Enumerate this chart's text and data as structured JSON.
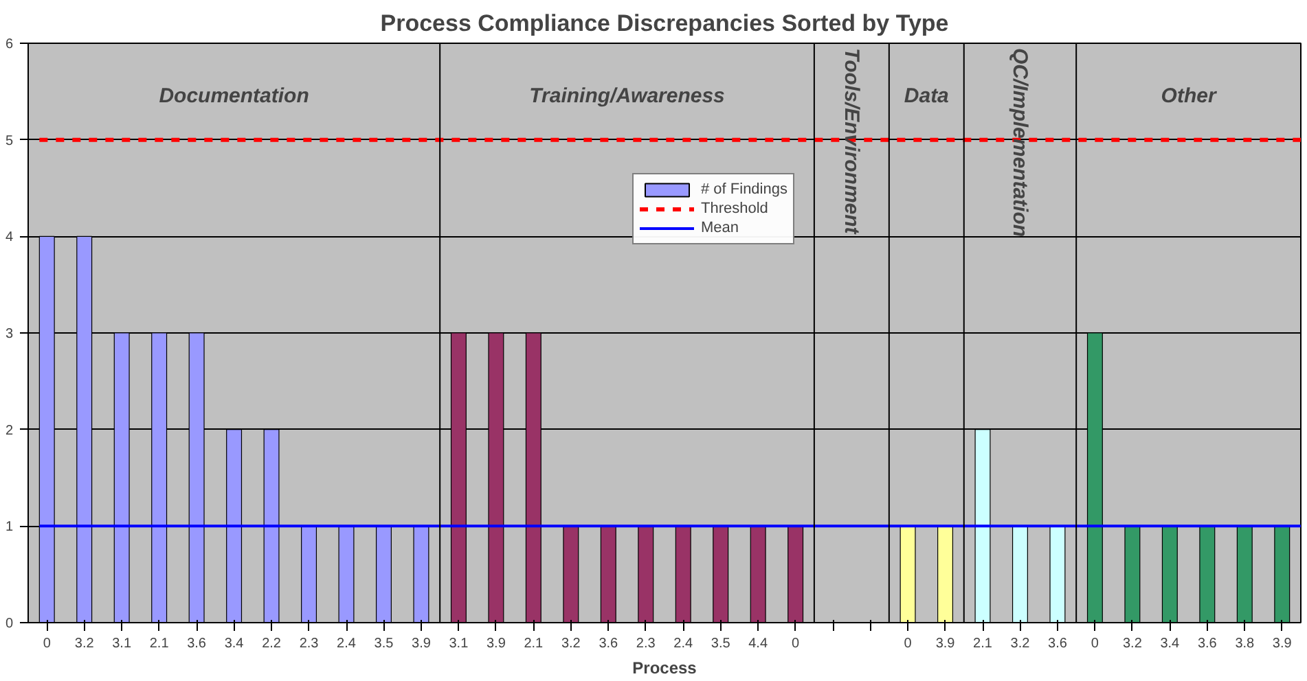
{
  "chart_data": {
    "type": "bar",
    "title": "Process Compliance Discrepancies Sorted by Type",
    "xlabel": "Process",
    "categories": [
      "0",
      "3.2",
      "3.1",
      "2.1",
      "3.6",
      "3.4",
      "2.2",
      "2.3",
      "2.4",
      "3.5",
      "3.9",
      "3.1",
      "3.9",
      "2.1",
      "3.2",
      "3.6",
      "2.3",
      "2.4",
      "3.5",
      "4.4",
      "0",
      null,
      null,
      "0",
      "3.9",
      "2.1",
      "3.2",
      "3.6",
      "0",
      "3.2",
      "3.4",
      "3.6",
      "3.8",
      "3.9"
    ],
    "series": [
      {
        "name": "# of Findings",
        "color": "#9999ff",
        "colors": [
          "#9999ff",
          "#9999ff",
          "#9999ff",
          "#9999ff",
          "#9999ff",
          "#9999ff",
          "#9999ff",
          "#9999ff",
          "#9999ff",
          "#9999ff",
          "#9999ff",
          "#993366",
          "#993366",
          "#993366",
          "#993366",
          "#993366",
          "#993366",
          "#993366",
          "#993366",
          "#993366",
          "#993366",
          "#c0c0c0",
          "#c0c0c0",
          "#ffff99",
          "#ffff99",
          "#ccffff",
          "#ccffff",
          "#ccffff",
          "#339966",
          "#339966",
          "#339966",
          "#339966",
          "#339966",
          "#339966"
        ],
        "values": [
          4,
          4,
          3,
          3,
          3,
          2,
          2,
          1,
          1,
          1,
          1,
          3,
          3,
          3,
          1,
          1,
          1,
          1,
          1,
          1,
          1,
          null,
          null,
          1,
          1,
          2,
          1,
          1,
          3,
          1,
          1,
          1,
          1,
          1
        ]
      }
    ],
    "ref_lines": [
      {
        "axis": "y",
        "value": 5,
        "label": "Threshold",
        "color": "#ff0000",
        "line_style": "dashed"
      },
      {
        "axis": "y",
        "value": 1,
        "label": "Mean",
        "color": "#0000ff",
        "line_style": "solid"
      }
    ],
    "annotations": [
      "Documentation",
      "Training/Awareness",
      "Tools/Environment",
      "Data",
      "QC/Implementation",
      "Other"
    ],
    "ylim": [
      0,
      6
    ],
    "yticks": [
      0,
      1,
      2,
      3,
      4,
      5,
      6
    ],
    "grid": "y",
    "legend": "top"
  }
}
